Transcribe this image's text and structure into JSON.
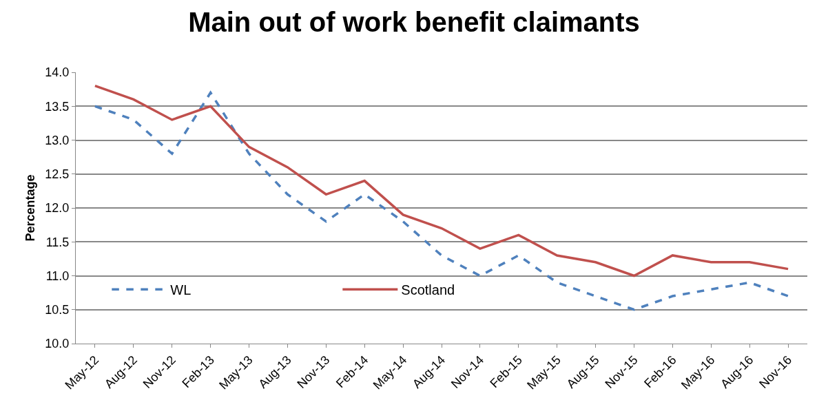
{
  "chart_data": {
    "type": "line",
    "title": "Main out of work benefit claimants",
    "ylabel": "Percentage",
    "categories": [
      "May-12",
      "Aug-12",
      "Nov-12",
      "Feb-13",
      "May-13",
      "Aug-13",
      "Nov-13",
      "Feb-14",
      "May-14",
      "Aug-14",
      "Nov-14",
      "Feb-15",
      "May-15",
      "Aug-15",
      "Nov-15",
      "Feb-16",
      "May-16",
      "Aug-16",
      "Nov-16"
    ],
    "series": [
      {
        "name": "WL",
        "color": "#4f81bd",
        "line_style": "dashed",
        "values": [
          13.5,
          13.3,
          12.8,
          13.7,
          12.8,
          12.2,
          11.8,
          12.2,
          11.8,
          11.3,
          11.0,
          11.3,
          10.9,
          10.7,
          10.5,
          10.7,
          10.8,
          10.9,
          10.7
        ]
      },
      {
        "name": "Scotland",
        "color": "#c0504d",
        "line_style": "solid",
        "values": [
          13.8,
          13.6,
          13.3,
          13.5,
          12.9,
          12.6,
          12.2,
          12.4,
          11.9,
          11.7,
          11.4,
          11.6,
          11.3,
          11.2,
          11.0,
          11.3,
          11.2,
          11.2,
          11.1
        ]
      }
    ],
    "ylim": [
      10,
      14
    ],
    "yticks": [
      {
        "value": 10,
        "label": "10.0"
      },
      {
        "value": 10.5,
        "label": "10.5"
      },
      {
        "value": 11,
        "label": "11.0"
      },
      {
        "value": 11.5,
        "label": "11.5"
      },
      {
        "value": 12,
        "label": "12.0"
      },
      {
        "value": 12.5,
        "label": "12.5"
      },
      {
        "value": 13,
        "label": "13.0"
      },
      {
        "value": 13.5,
        "label": "13.5"
      },
      {
        "value": 14,
        "label": "14.0"
      }
    ],
    "grid": "y",
    "legend": "bottom",
    "marker": "none"
  }
}
